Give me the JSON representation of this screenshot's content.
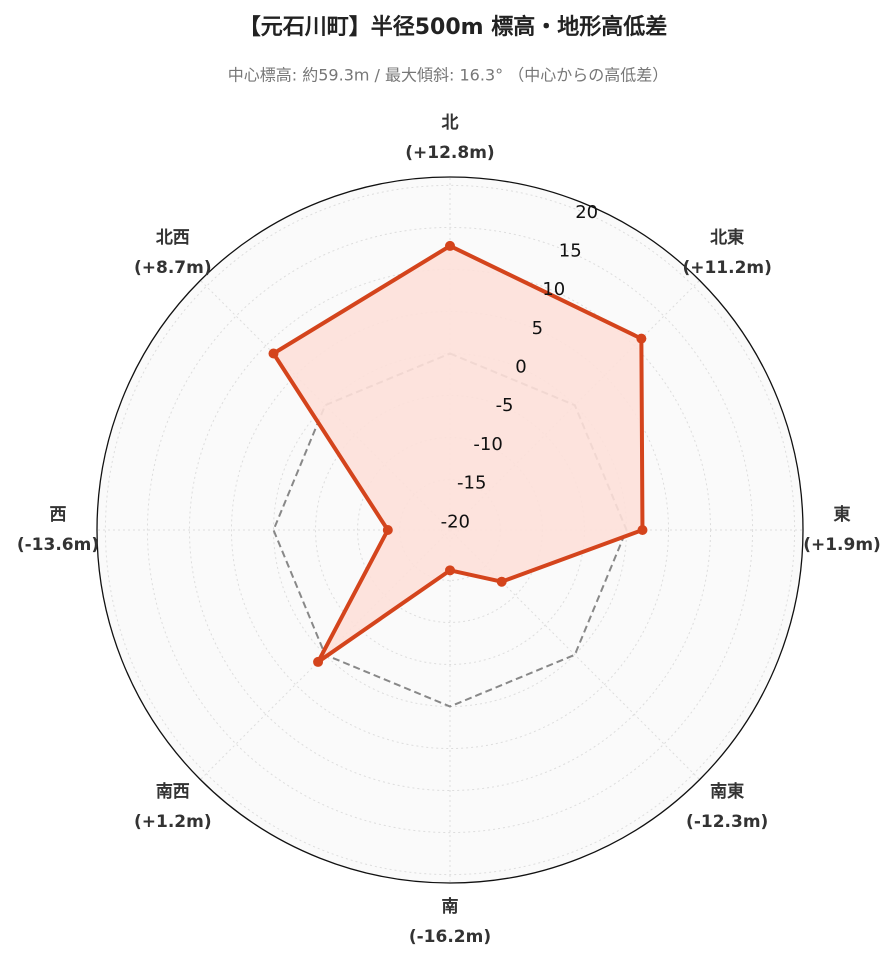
{
  "chart_data": {
    "type": "radar",
    "title": "【元石川町】半径500m 標高・地形高低差",
    "subtitle": "中心標高: 約59.3m / 最大傾斜: 16.3° （中心からの高低差）",
    "categories": [
      "北",
      "北東",
      "東",
      "南東",
      "南",
      "南西",
      "西",
      "北西"
    ],
    "values": [
      12.8,
      11.2,
      1.9,
      -12.3,
      -16.2,
      1.2,
      -13.6,
      8.7
    ],
    "value_labels": [
      "(+12.8m)",
      "(+11.2m)",
      "(+1.9m)",
      "(-12.3m)",
      "(-16.2m)",
      "(+1.2m)",
      "(-13.6m)",
      "(+8.7m)"
    ],
    "color": "#d4441c",
    "fill_color": "#fde0d9",
    "reference_line": 0,
    "rlim": [
      -21,
      21
    ],
    "rticks": [
      -20,
      -15,
      -10,
      -5,
      0,
      5,
      10,
      15,
      20
    ],
    "grid": true
  }
}
